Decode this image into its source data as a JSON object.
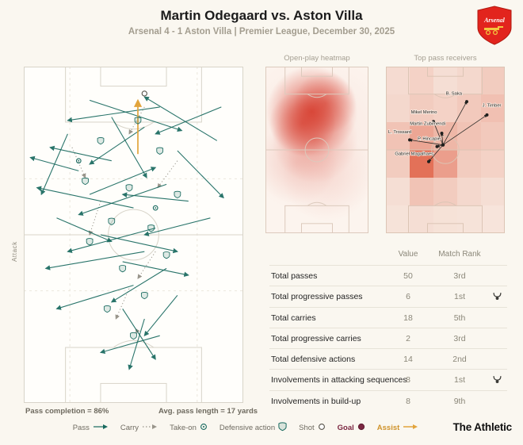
{
  "header": {
    "title": "Martin Odegaard vs. Aston Villa",
    "subtitle": "Arsenal 4 - 1 Aston Villa | Premier League, December 30, 2025"
  },
  "crest": {
    "team": "Arsenal"
  },
  "main_pitch": {
    "attack_label": "Attack",
    "pass_completion": "Pass completion = 86%",
    "avg_pass_length": "Avg. pass length = 17 yards"
  },
  "panels": {
    "heatmap_title": "Open-play heatmap",
    "receivers_title": "Top pass receivers"
  },
  "stats_table": {
    "columns": [
      "Value",
      "Match Rank"
    ],
    "rows": [
      {
        "label": "Total passes",
        "value": "50",
        "rank": "3rd",
        "badge": false
      },
      {
        "label": "Total progressive passes",
        "value": "6",
        "rank": "1st",
        "badge": true
      },
      {
        "label": "Total carries",
        "value": "18",
        "rank": "5th",
        "badge": false
      },
      {
        "label": "Total progressive carries",
        "value": "2",
        "rank": "3rd",
        "badge": false
      },
      {
        "label": "Total defensive actions",
        "value": "14",
        "rank": "2nd",
        "badge": false
      },
      {
        "label": "Involvements in attacking sequences",
        "value": "8",
        "rank": "1st",
        "badge": true
      },
      {
        "label": "Involvements in build-up",
        "value": "8",
        "rank": "9th",
        "badge": false
      }
    ]
  },
  "legend": {
    "items": [
      {
        "label": "Pass",
        "icon": "pass-arrow"
      },
      {
        "label": "Carry",
        "icon": "carry-dotted-arrow"
      },
      {
        "label": "Take-on",
        "icon": "take-on-marker"
      },
      {
        "label": "Defensive action",
        "icon": "defensive-action-shield"
      },
      {
        "label": "Shot",
        "icon": "shot-circle"
      },
      {
        "label": "Goal",
        "icon": "goal-dot"
      },
      {
        "label": "Assist",
        "icon": "assist-arrow"
      }
    ]
  },
  "branding": {
    "wordmark": "The Athletic"
  },
  "colors": {
    "pass": "#17695e",
    "carry": "#99958b",
    "assist": "#e2a43c",
    "goal": "#7c2742",
    "heat": "#d53728",
    "grid_red": "#dd5236",
    "crest_red": "#e2241d"
  },
  "chart_data": [
    {
      "name": "pass_map",
      "type": "scatter",
      "title": "Martin Odegaard pass map vs. Aston Villa",
      "attack_direction": "up",
      "pass_completion_pct": 86,
      "avg_pass_length_yards": 17,
      "passes": [
        [
          62,
          12,
          20,
          16
        ],
        [
          30,
          10,
          72,
          19
        ],
        [
          88,
          22,
          55,
          9
        ],
        [
          20,
          20,
          8,
          38
        ],
        [
          55,
          18,
          30,
          29
        ],
        [
          70,
          25,
          91,
          39
        ],
        [
          40,
          28,
          12,
          24
        ],
        [
          65,
          35,
          25,
          44
        ],
        [
          30,
          38,
          60,
          30
        ],
        [
          75,
          40,
          45,
          38
        ],
        [
          50,
          42,
          6,
          36
        ],
        [
          85,
          45,
          55,
          50
        ],
        [
          60,
          48,
          20,
          55
        ],
        [
          35,
          50,
          70,
          55
        ],
        [
          55,
          55,
          10,
          60
        ],
        [
          45,
          58,
          75,
          62
        ],
        [
          65,
          60,
          40,
          70
        ],
        [
          50,
          65,
          15,
          72
        ],
        [
          70,
          68,
          55,
          80
        ],
        [
          45,
          72,
          60,
          87
        ],
        [
          55,
          75,
          48,
          90
        ],
        [
          62,
          80,
          35,
          85
        ],
        [
          40,
          15,
          56,
          33
        ],
        [
          25,
          31,
          3,
          27
        ],
        [
          90,
          12,
          60,
          20
        ],
        [
          15,
          45,
          40,
          52
        ]
      ],
      "carries": [
        [
          55,
          12,
          48,
          20
        ],
        [
          70,
          28,
          61,
          36
        ],
        [
          35,
          40,
          30,
          50
        ],
        [
          60,
          55,
          52,
          63
        ],
        [
          48,
          66,
          42,
          75
        ],
        [
          58,
          85,
          51,
          78
        ],
        [
          22,
          24,
          28,
          33
        ]
      ],
      "assists": [
        [
          52,
          26,
          52,
          10
        ]
      ],
      "defensive_actions": [
        [
          52,
          16
        ],
        [
          35,
          22
        ],
        [
          62,
          25
        ],
        [
          28,
          34
        ],
        [
          48,
          36
        ],
        [
          70,
          38
        ],
        [
          40,
          46
        ],
        [
          58,
          48
        ],
        [
          30,
          52
        ],
        [
          65,
          56
        ],
        [
          45,
          60
        ],
        [
          55,
          68
        ],
        [
          38,
          72
        ],
        [
          50,
          80
        ]
      ],
      "take_ons": [
        [
          25,
          28
        ],
        [
          60,
          42
        ]
      ],
      "shots": [
        [
          55,
          8
        ]
      ]
    },
    {
      "name": "heatmap",
      "type": "heatmap",
      "title": "Open-play heatmap",
      "blobs": [
        [
          45,
          27,
          34,
          0.8
        ],
        [
          36,
          34,
          26,
          0.6
        ],
        [
          58,
          22,
          22,
          0.5
        ],
        [
          48,
          44,
          40,
          0.3
        ],
        [
          30,
          58,
          34,
          0.16
        ],
        [
          60,
          66,
          36,
          0.1
        ],
        [
          50,
          40,
          75,
          0.07
        ]
      ]
    },
    {
      "name": "pass_receivers",
      "type": "scatter",
      "title": "Top pass receivers",
      "hub": [
        48,
        47
      ],
      "receivers": [
        [
          "Mikel Merino",
          40,
          33,
          43,
          28,
          "end"
        ],
        [
          "B. Saka",
          68,
          21,
          64,
          17,
          "end"
        ],
        [
          "J. Timber",
          85,
          29,
          97,
          24,
          "end"
        ],
        [
          "L. Trossard",
          20,
          44,
          2,
          40,
          "start"
        ],
        [
          "Martin Zubimendi",
          47,
          40,
          50,
          35,
          "end"
        ],
        [
          "P. Hincapie",
          43,
          48,
          46,
          44,
          "end"
        ],
        [
          "Gabriel Magalhaes",
          36,
          57,
          40,
          53,
          "end"
        ]
      ],
      "grid": [
        [
          0.1,
          0.16,
          0.08,
          0.12,
          0.2
        ],
        [
          0.12,
          0.2,
          0.16,
          0.22,
          0.28
        ],
        [
          0.26,
          0.45,
          0.34,
          0.26,
          0.22
        ],
        [
          0.2,
          0.8,
          0.5,
          0.2,
          0.16
        ],
        [
          0.08,
          0.26,
          0.2,
          0.12,
          0.08
        ],
        [
          0.05,
          0.08,
          0.06,
          0.05,
          0.04
        ]
      ]
    },
    {
      "name": "stats",
      "type": "table",
      "columns": [
        "Value",
        "Match Rank"
      ],
      "rows": [
        [
          "Total passes",
          50,
          "3rd"
        ],
        [
          "Total progressive passes",
          6,
          "1st"
        ],
        [
          "Total carries",
          18,
          "5th"
        ],
        [
          "Total progressive carries",
          2,
          "3rd"
        ],
        [
          "Total defensive actions",
          14,
          "2nd"
        ],
        [
          "Involvements in attacking sequences",
          8,
          "1st"
        ],
        [
          "Involvements in build-up",
          8,
          "9th"
        ]
      ]
    }
  ]
}
